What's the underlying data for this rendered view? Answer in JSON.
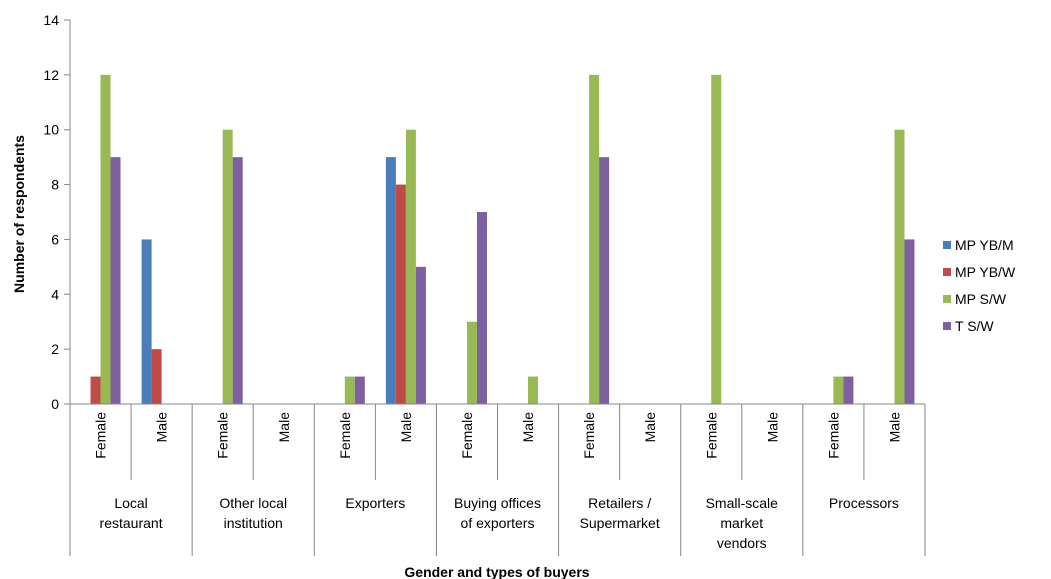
{
  "chart_data": {
    "type": "bar",
    "xlabel": "Gender and types of buyers",
    "ylabel": "Number of respondents",
    "ylim": [
      0,
      14
    ],
    "yticks": [
      0,
      2,
      4,
      6,
      8,
      10,
      12,
      14
    ],
    "grid": false,
    "legend_position": "right",
    "groups": [
      {
        "label": "Local restaurant",
        "lines": [
          "Local",
          "restaurant"
        ]
      },
      {
        "label": "Other local institution",
        "lines": [
          "Other local",
          "institution"
        ]
      },
      {
        "label": "Exporters",
        "lines": [
          "Exporters"
        ]
      },
      {
        "label": "Buying offices of exporters",
        "lines": [
          "Buying offices",
          "of exporters"
        ]
      },
      {
        "label": "Retailers / Supermarket",
        "lines": [
          "Retailers /",
          "Supermarket"
        ]
      },
      {
        "label": "Small-scale market vendors",
        "lines": [
          "Small-scale",
          "market",
          "vendors"
        ]
      },
      {
        "label": "Processors",
        "lines": [
          "Processors"
        ]
      }
    ],
    "subcategories": [
      "Female",
      "Male"
    ],
    "series": [
      {
        "name": "MP YB/M",
        "color": "#4A7EBB",
        "values": [
          [
            0,
            6
          ],
          [
            0,
            0
          ],
          [
            0,
            9
          ],
          [
            0,
            0
          ],
          [
            0,
            0
          ],
          [
            0,
            0
          ],
          [
            0,
            0
          ]
        ]
      },
      {
        "name": "MP YB/W",
        "color": "#BE4B48",
        "values": [
          [
            1,
            2
          ],
          [
            0,
            0
          ],
          [
            0,
            8
          ],
          [
            0,
            0
          ],
          [
            0,
            0
          ],
          [
            0,
            0
          ],
          [
            0,
            0
          ]
        ]
      },
      {
        "name": "MP S/W",
        "color": "#98B954",
        "values": [
          [
            12,
            0
          ],
          [
            10,
            0
          ],
          [
            1,
            10
          ],
          [
            3,
            1
          ],
          [
            12,
            0
          ],
          [
            12,
            0
          ],
          [
            1,
            10
          ]
        ]
      },
      {
        "name": "T S/W",
        "color": "#7D60A0",
        "values": [
          [
            9,
            0
          ],
          [
            9,
            0
          ],
          [
            1,
            5
          ],
          [
            7,
            0
          ],
          [
            9,
            0
          ],
          [
            0,
            0
          ],
          [
            1,
            6
          ]
        ]
      }
    ]
  }
}
